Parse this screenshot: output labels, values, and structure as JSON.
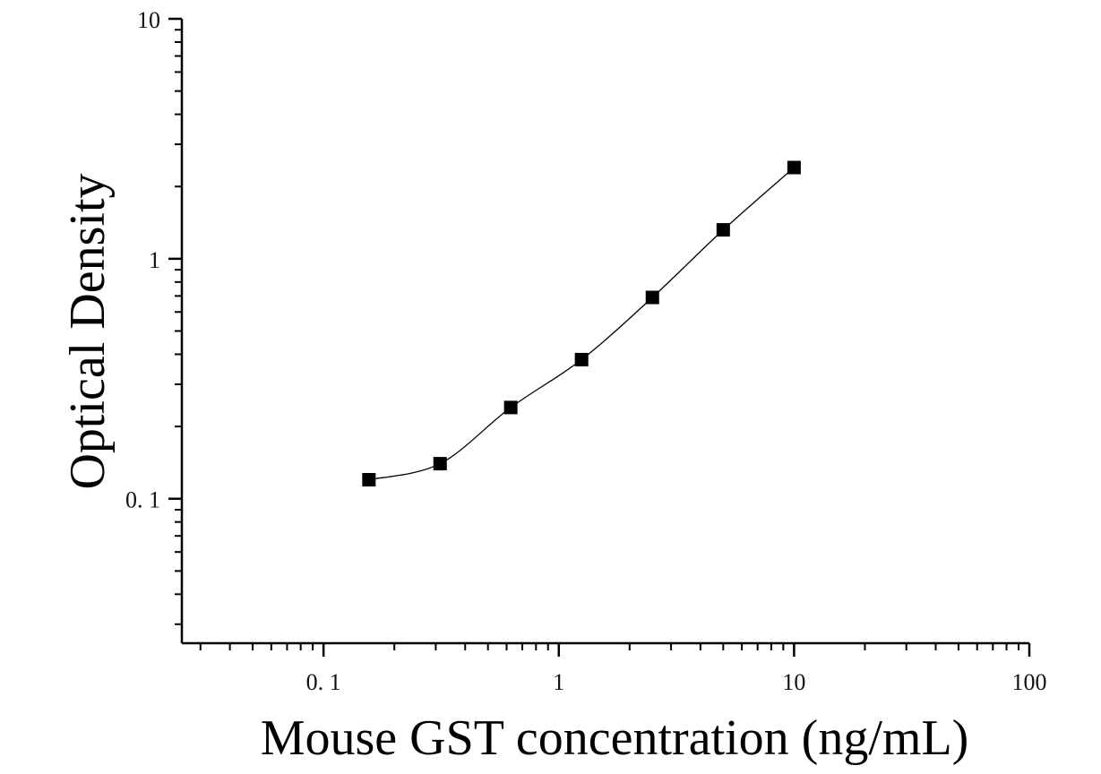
{
  "chart_data": {
    "type": "scatter",
    "title": "",
    "xlabel": "Mouse GST concentration (ng/mL)",
    "ylabel": "Optical Density",
    "x_scale": "log",
    "y_scale": "log",
    "xlim": [
      0.025,
      100
    ],
    "ylim": [
      0.025,
      10
    ],
    "x_ticks": [
      {
        "value": 0.1,
        "label": "0. 1"
      },
      {
        "value": 1,
        "label": "1"
      },
      {
        "value": 10,
        "label": "10"
      },
      {
        "value": 100,
        "label": "100"
      }
    ],
    "y_ticks": [
      {
        "value": 0.1,
        "label": "0. 1"
      },
      {
        "value": 1,
        "label": "1"
      },
      {
        "value": 10,
        "label": "10"
      }
    ],
    "grid": false,
    "legend": "none",
    "series": [
      {
        "marker": "square",
        "color": "#000000",
        "points": [
          {
            "x": 0.156,
            "y": 0.12
          },
          {
            "x": 0.313,
            "y": 0.14
          },
          {
            "x": 0.625,
            "y": 0.24
          },
          {
            "x": 1.25,
            "y": 0.38
          },
          {
            "x": 2.5,
            "y": 0.69
          },
          {
            "x": 5,
            "y": 1.32
          },
          {
            "x": 10,
            "y": 2.4
          }
        ]
      }
    ],
    "fit_curve": {
      "color": "#000000",
      "x_range": [
        0.156,
        10
      ]
    }
  }
}
